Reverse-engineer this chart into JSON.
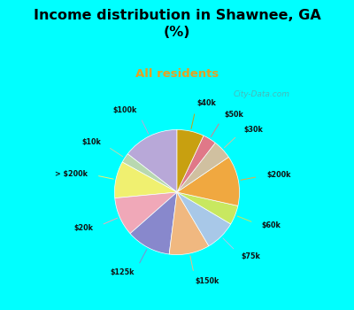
{
  "title": "Income distribution in Shawnee, GA\n(%)",
  "subtitle": "All residents",
  "title_color": "#000000",
  "subtitle_color": "#e8a020",
  "background_fig": "#00ffff",
  "background_chart": "#dff2e8",
  "labels": [
    "$100k",
    "$10k",
    "> $200k",
    "$20k",
    "$125k",
    "$150k",
    "$75k",
    "$60k",
    "$200k",
    "$30k",
    "$50k",
    "$40k"
  ],
  "sizes": [
    14.5,
    2.5,
    9.5,
    10.0,
    11.5,
    10.5,
    8.0,
    5.0,
    13.0,
    5.0,
    3.5,
    7.0
  ],
  "colors": [
    "#b8a8d8",
    "#b8d8b0",
    "#f0f070",
    "#f0a8b8",
    "#8888cc",
    "#f0b880",
    "#a8c8e8",
    "#c8e860",
    "#f0a840",
    "#d0c0a0",
    "#e07888",
    "#c8a010"
  ],
  "line_colors": [
    "#b8a8d8",
    "#b8d8b0",
    "#f0f070",
    "#f0a8b8",
    "#8888cc",
    "#f0b880",
    "#a8c8e8",
    "#c8e860",
    "#f0a840",
    "#d0c0a0",
    "#e07888",
    "#c8a010"
  ],
  "startangle": 90,
  "watermark": "City-Data.com"
}
